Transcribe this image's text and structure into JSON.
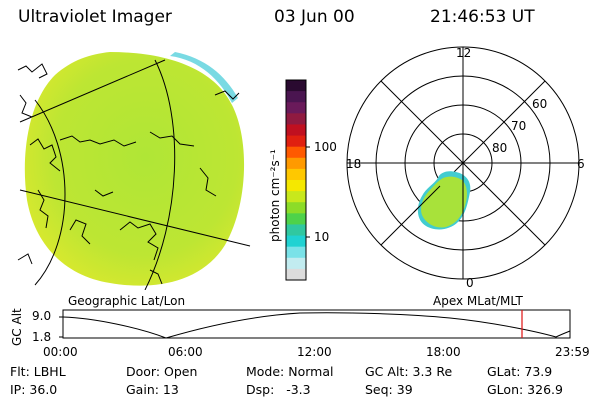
{
  "header": {
    "title": "Ultraviolet Imager",
    "date": "03 Jun 00",
    "time": "21:46:53 UT"
  },
  "colorbar": {
    "label": "photon cm⁻²s⁻¹",
    "ticks": [
      "100",
      "10"
    ],
    "colors": [
      "#2a0a30",
      "#4a1550",
      "#6a1a5a",
      "#901a40",
      "#c01020",
      "#e02010",
      "#ff5a00",
      "#ff9a00",
      "#ffc800",
      "#f5e800",
      "#c8e81c",
      "#8cdc28",
      "#4ed24a",
      "#30c8a0",
      "#20d2d2",
      "#7ae2e8",
      "#c2ecf0",
      "#dcdcdc"
    ]
  },
  "left_panel": {
    "caption": "Geographic Lat/Lon",
    "fill_color": "#b8e632"
  },
  "polar_plot": {
    "caption": "Apex MLat/MLT",
    "mlt_labels": [
      "12",
      "18",
      "6",
      "0"
    ],
    "lat_labels": [
      "60",
      "70",
      "80"
    ],
    "fill_color": "#a8e23a",
    "edge_color": "#44d0d0"
  },
  "altitude_strip": {
    "axis_label": "GC Alt",
    "y_ticks": [
      "9.0",
      "1.8"
    ],
    "x_ticks": [
      "00:00",
      "06:00",
      "12:00",
      "18:00",
      "23:59"
    ],
    "marker_color": "#e01010"
  },
  "info": {
    "flt": "Flt: LBHL",
    "door": "Door: Open",
    "mode": "Mode: Normal",
    "gc_alt": "GC Alt: 3.3 Re",
    "glat": "GLat: 73.9",
    "ip": "IP: 36.0",
    "gain": "Gain: 13",
    "dsp": "Dsp:   -3.3",
    "seq": "Seq: 39",
    "glon": "GLon: 326.9"
  }
}
